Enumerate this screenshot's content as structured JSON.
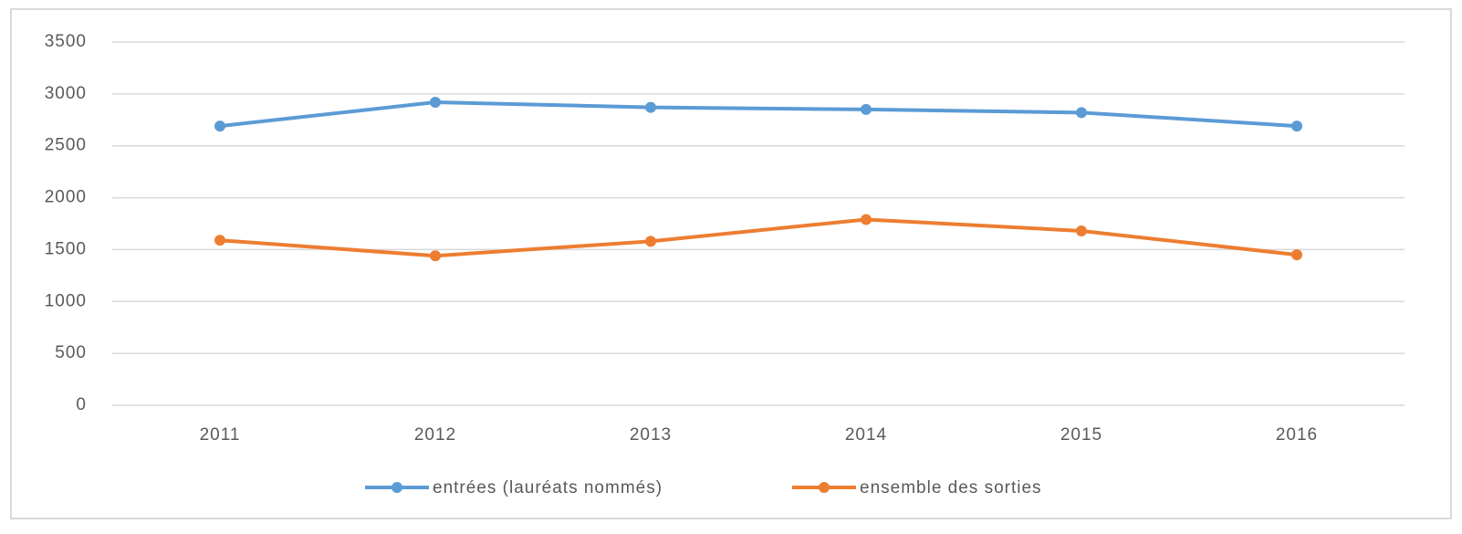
{
  "chart_data": {
    "type": "line",
    "categories": [
      "2011",
      "2012",
      "2013",
      "2014",
      "2015",
      "2016"
    ],
    "series": [
      {
        "name": "entrées (lauréats nommés)",
        "color": "#5b9bd5",
        "values": [
          2690,
          2920,
          2870,
          2850,
          2820,
          2690
        ]
      },
      {
        "name": "ensemble des sorties",
        "color": "#ed7d31",
        "values": [
          1590,
          1440,
          1580,
          1790,
          1680,
          1450
        ]
      }
    ],
    "ylim": [
      0,
      3500
    ],
    "yticks": [
      0,
      500,
      1000,
      1500,
      2000,
      2500,
      3000,
      3500
    ],
    "grid": true,
    "legend": "bottom"
  }
}
